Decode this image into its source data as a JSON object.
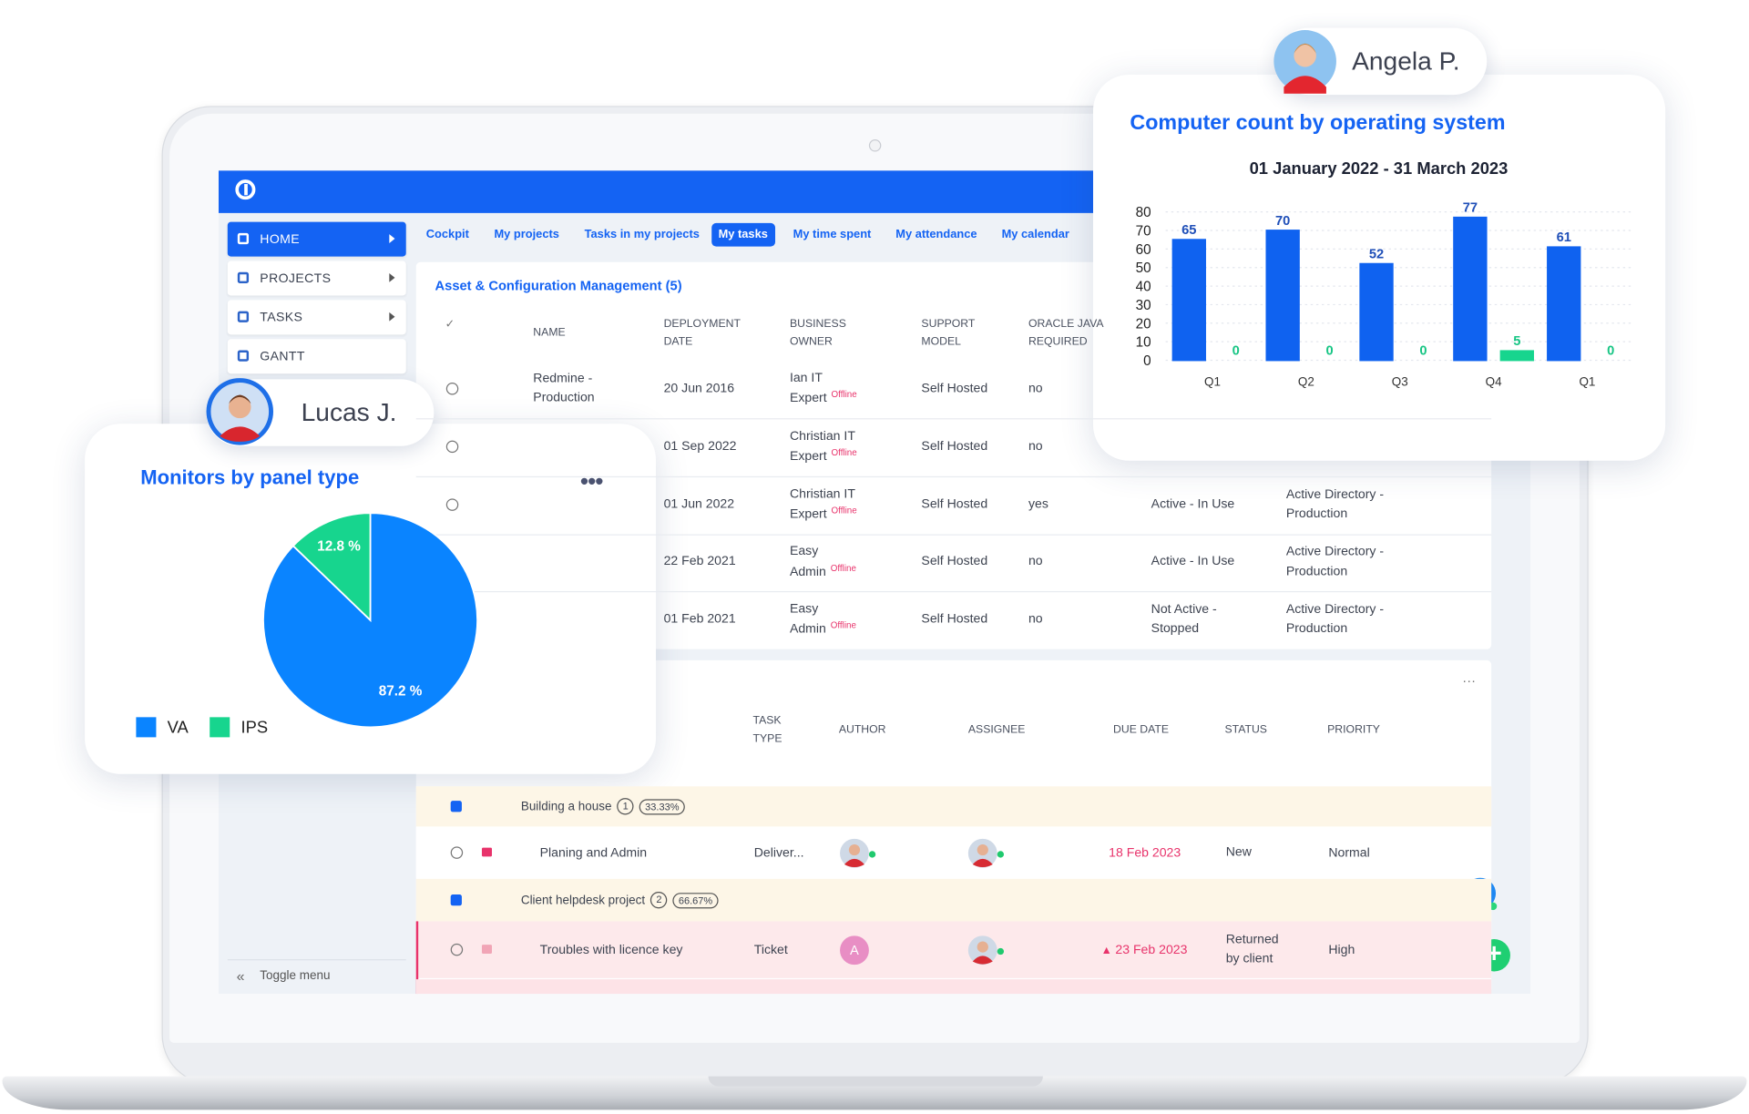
{
  "app": {
    "nav": [
      "HOME",
      "PROJECTS",
      "TASKS",
      "GANTT"
    ],
    "toggle_menu": "Toggle menu",
    "tabs": [
      "Cockpit",
      "My projects",
      "Tasks in my projects",
      "My tasks",
      "My time spent",
      "My attendance",
      "My calendar"
    ],
    "active_tab": 3
  },
  "asset_table": {
    "title": "Asset & Configuration Management (5)",
    "offline_label": "Offline",
    "columns": [
      "NAME",
      "DEPLOYMENT DATE",
      "BUSINESS OWNER",
      "SUPPORT MODEL",
      "ORACLE JAVA REQUIRED"
    ],
    "rows": [
      [
        "Redmine - Production",
        "20 Jun 2016",
        "Ian IT Expert",
        "Self Hosted",
        "no",
        null,
        null
      ],
      [
        null,
        "01 Sep 2022",
        "Christian IT Expert",
        "Self Hosted",
        "no",
        null,
        null
      ],
      [
        null,
        "01 Jun 2022",
        "Christian IT Expert",
        "Self Hosted",
        "yes",
        "Active - In Use",
        "Active Directory - Production"
      ],
      [
        null,
        "22 Feb 2021",
        "Easy Admin",
        "Self Hosted",
        "no",
        "Active - In Use",
        "Active Directory - Production"
      ],
      [
        null,
        "01 Feb 2021",
        "Easy Admin",
        "Self Hosted",
        "no",
        "Not Active - Stopped",
        "Active Directory - Production"
      ]
    ]
  },
  "task_table": {
    "columns": [
      "TASK TYPE",
      "AUTHOR",
      "ASSIGNEE",
      "DUE DATE",
      "STATUS",
      "PRIORITY"
    ],
    "groups": [
      {
        "name": "Building a house",
        "count": 1,
        "percent": "33.33%",
        "tasks": [
          {
            "name": "Planing and Admin",
            "type": "Deliver...",
            "due": "18 Feb 2023",
            "status": "New",
            "priority": "Normal"
          }
        ]
      },
      {
        "name": "Client helpdesk project",
        "count": 2,
        "percent": "66.67%",
        "tasks": [
          {
            "name": "Troubles with licence key",
            "type": "Ticket",
            "author_initial": "A",
            "due": "23 Feb 2023",
            "status": "Returned by client",
            "priority": "High"
          }
        ]
      }
    ]
  },
  "users": [
    "Angela P.",
    "Lucas J."
  ],
  "chart_data": [
    {
      "type": "bar",
      "title": "Computer count by operating system",
      "subtitle": "01 January 2022 - 31 March 2023",
      "categories": [
        "Q1",
        "Q2",
        "Q3",
        "Q4",
        "Q1"
      ],
      "series": [
        {
          "color": "#0f62f0",
          "values": [
            65,
            70,
            52,
            77,
            61
          ]
        },
        {
          "color": "#17d58e",
          "values": [
            0,
            0,
            0,
            5,
            0
          ]
        }
      ],
      "ylim": [
        0,
        80
      ],
      "yticks": [
        0,
        10,
        20,
        30,
        40,
        50,
        60,
        70,
        80
      ],
      "grid": true
    },
    {
      "type": "pie",
      "title": "Monitors by panel type",
      "categories": [
        "VA",
        "IPS"
      ],
      "values": [
        87.2,
        12.8
      ],
      "value_labels": [
        "87.2 %",
        "12.8 %"
      ],
      "colors": [
        "#0a84ff",
        "#17d58e"
      ],
      "legend": "bottom-left"
    }
  ]
}
